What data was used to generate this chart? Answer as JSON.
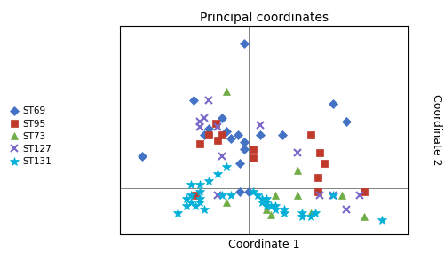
{
  "title": "Principal coordinates",
  "xlabel": "Coordinate 1",
  "ylabel": "Coordinate 2",
  "axhline": 0.0,
  "axvline": 0.0,
  "series": {
    "ST69": {
      "color": "#4472C4",
      "marker": "D",
      "markersize": 5,
      "points": [
        [
          -0.25,
          0.5
        ],
        [
          -0.02,
          0.82
        ],
        [
          -0.12,
          0.4
        ],
        [
          -0.18,
          0.34
        ],
        [
          -0.2,
          0.3
        ],
        [
          -0.1,
          0.32
        ],
        [
          -0.05,
          0.3
        ],
        [
          -0.08,
          0.28
        ],
        [
          0.05,
          0.3
        ],
        [
          -0.02,
          0.26
        ],
        [
          -0.02,
          0.22
        ],
        [
          0.15,
          0.3
        ],
        [
          -0.48,
          0.18
        ],
        [
          -0.04,
          0.14
        ],
        [
          -0.04,
          -0.02
        ],
        [
          0.38,
          0.48
        ],
        [
          0.44,
          0.38
        ],
        [
          0.0,
          -0.02
        ]
      ]
    },
    "ST95": {
      "color": "#C0392B",
      "marker": "s",
      "markersize": 6,
      "points": [
        [
          -0.15,
          0.37
        ],
        [
          -0.18,
          0.3
        ],
        [
          -0.12,
          0.3
        ],
        [
          -0.22,
          0.25
        ],
        [
          -0.14,
          0.27
        ],
        [
          0.02,
          0.22
        ],
        [
          0.02,
          0.17
        ],
        [
          0.28,
          0.3
        ],
        [
          0.32,
          0.2
        ],
        [
          0.34,
          0.14
        ],
        [
          0.31,
          0.06
        ],
        [
          0.31,
          -0.02
        ],
        [
          0.52,
          -0.02
        ],
        [
          -0.24,
          -0.04
        ]
      ]
    },
    "ST73": {
      "color": "#70AD47",
      "marker": "^",
      "markersize": 6,
      "points": [
        [
          -0.1,
          0.55
        ],
        [
          0.22,
          0.1
        ],
        [
          -0.1,
          -0.08
        ],
        [
          0.12,
          -0.04
        ],
        [
          0.22,
          -0.04
        ],
        [
          0.08,
          -0.12
        ],
        [
          0.1,
          -0.15
        ],
        [
          0.28,
          -0.14
        ],
        [
          0.52,
          -0.16
        ],
        [
          0.42,
          -0.04
        ]
      ]
    },
    "ST127": {
      "color": "#7B68C8",
      "marker": "x",
      "markersize": 6,
      "markeredgewidth": 1.5,
      "points": [
        [
          -0.18,
          0.5
        ],
        [
          -0.2,
          0.4
        ],
        [
          -0.22,
          0.38
        ],
        [
          -0.22,
          0.35
        ],
        [
          -0.14,
          0.35
        ],
        [
          0.05,
          0.36
        ],
        [
          -0.12,
          0.18
        ],
        [
          0.22,
          0.2
        ],
        [
          -0.14,
          -0.04
        ],
        [
          0.32,
          -0.04
        ],
        [
          0.38,
          -0.04
        ],
        [
          0.44,
          -0.12
        ],
        [
          0.5,
          -0.04
        ]
      ]
    },
    "ST131": {
      "color": "#00B0D8",
      "marker": "*",
      "markersize": 7,
      "markeredgewidth": 0.5,
      "points": [
        [
          -0.1,
          0.12
        ],
        [
          -0.14,
          0.08
        ],
        [
          -0.18,
          0.04
        ],
        [
          -0.26,
          0.02
        ],
        [
          -0.22,
          0.02
        ],
        [
          -0.22,
          -0.02
        ],
        [
          -0.26,
          -0.04
        ],
        [
          -0.28,
          -0.06
        ],
        [
          -0.22,
          -0.06
        ],
        [
          -0.22,
          -0.08
        ],
        [
          -0.26,
          -0.08
        ],
        [
          -0.24,
          -0.1
        ],
        [
          -0.28,
          -0.1
        ],
        [
          -0.2,
          -0.12
        ],
        [
          -0.32,
          -0.14
        ],
        [
          -0.12,
          -0.04
        ],
        [
          -0.08,
          -0.04
        ],
        [
          0.02,
          -0.02
        ],
        [
          0.04,
          -0.04
        ],
        [
          0.06,
          -0.06
        ],
        [
          0.08,
          -0.06
        ],
        [
          0.06,
          -0.08
        ],
        [
          0.08,
          -0.08
        ],
        [
          0.1,
          -0.1
        ],
        [
          0.08,
          -0.1
        ],
        [
          0.12,
          -0.1
        ],
        [
          0.12,
          -0.12
        ],
        [
          0.16,
          -0.12
        ],
        [
          0.16,
          -0.14
        ],
        [
          0.24,
          -0.14
        ],
        [
          0.24,
          -0.16
        ],
        [
          0.28,
          -0.16
        ],
        [
          0.3,
          -0.14
        ],
        [
          0.38,
          -0.04
        ],
        [
          0.6,
          -0.18
        ]
      ]
    }
  },
  "xlim": [
    -0.58,
    0.72
  ],
  "ylim": [
    -0.26,
    0.92
  ],
  "figsize": [
    5.0,
    2.93
  ],
  "dpi": 100,
  "legend_fontsize": 7.5,
  "title_fontsize": 10,
  "label_fontsize": 9
}
